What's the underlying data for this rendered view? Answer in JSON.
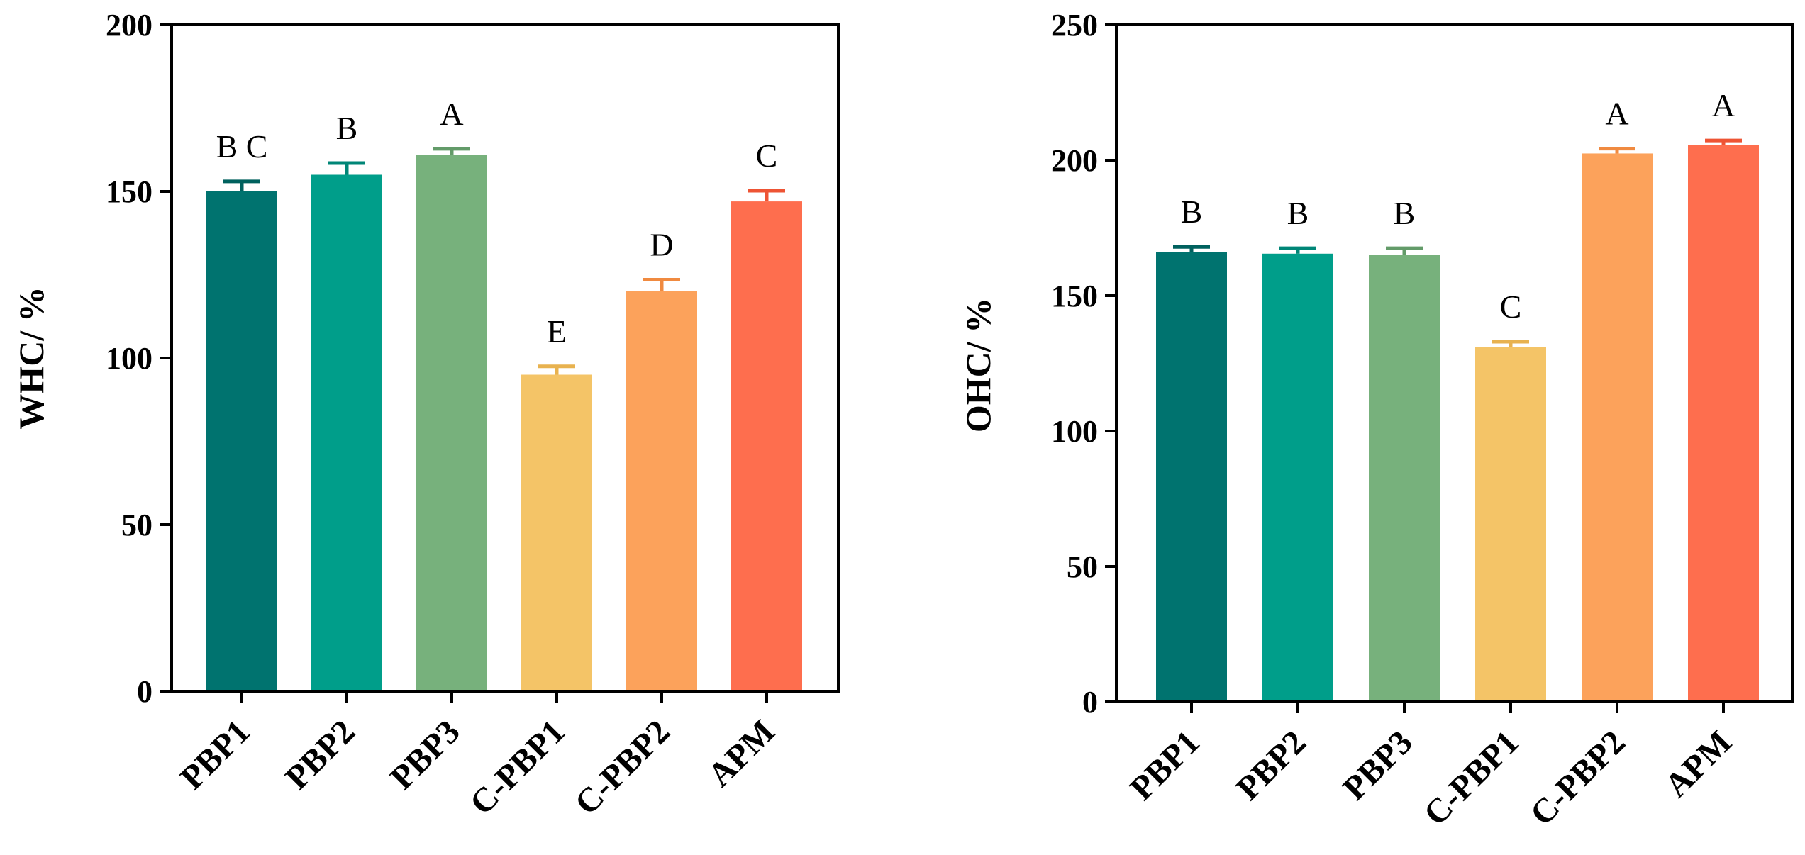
{
  "chart_data": [
    {
      "type": "bar",
      "title": "",
      "xlabel": "",
      "ylabel": "WHC/ %",
      "ylim": [
        0,
        200
      ],
      "yticks": [
        "0",
        "50",
        "100",
        "150",
        "200"
      ],
      "categories": [
        "PBP1",
        "PBP2",
        "PBP3",
        "C-PBP1",
        "C-PBP2",
        "APM"
      ],
      "values": [
        150,
        155,
        161,
        95,
        120,
        147
      ],
      "errors": [
        3,
        3.5,
        1.8,
        2.5,
        3.5,
        3.2
      ],
      "significance": [
        "B C",
        "B",
        "A",
        "E",
        "D",
        "C"
      ],
      "colors": [
        "#00736F",
        "#009E8A",
        "#77B17C",
        "#F4C467",
        "#FCA25B",
        "#FE6E4E"
      ],
      "error_colors": [
        "#00615E",
        "#008677",
        "#639B69",
        "#E8B24F",
        "#F08A40",
        "#EE5434"
      ]
    },
    {
      "type": "bar",
      "title": "",
      "xlabel": "",
      "ylabel": "OHC/ %",
      "ylim": [
        0,
        250
      ],
      "yticks": [
        "0",
        "50",
        "100",
        "150",
        "200",
        "250"
      ],
      "categories": [
        "PBP1",
        "PBP2",
        "PBP3",
        "C-PBP1",
        "C-PBP2",
        "APM"
      ],
      "values": [
        166,
        165.5,
        165,
        131,
        202.5,
        205.5
      ],
      "errors": [
        2,
        2,
        2.5,
        2,
        1.8,
        1.8
      ],
      "significance": [
        "B",
        "B",
        "B",
        "C",
        "A",
        "A"
      ],
      "colors": [
        "#00736F",
        "#009E8A",
        "#77B17C",
        "#F4C467",
        "#FCA25B",
        "#FE6E4E"
      ],
      "error_colors": [
        "#00615E",
        "#008677",
        "#639B69",
        "#E8B24F",
        "#F08A40",
        "#EE5434"
      ]
    }
  ]
}
